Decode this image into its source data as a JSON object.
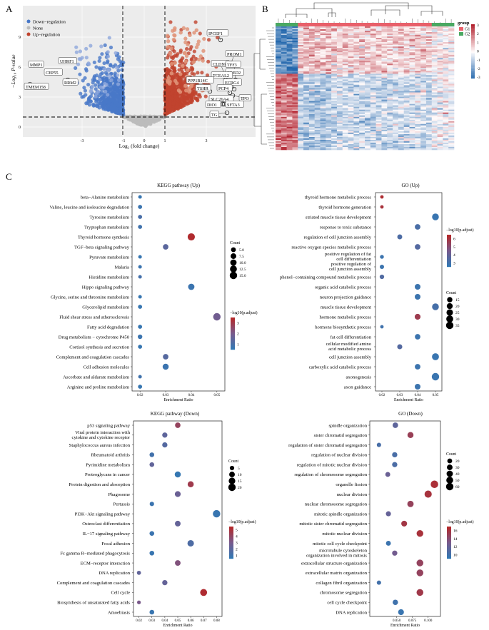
{
  "panel_labels": {
    "a": "A",
    "b": "B",
    "c": "C"
  },
  "volcano": {
    "xlabel": "Log₂ (fold change)",
    "ylabel": "−Log₁₀ P-value",
    "legend": {
      "down": "Down−regulation",
      "none": "None",
      "up": "Up−regulation"
    },
    "colors": {
      "down": "#4878c8",
      "none": "#bcbcbc",
      "up": "#c0432e",
      "highlight_up": "#e0957a",
      "highlight_down": "#8fa8dc"
    },
    "xticks": [
      "-3",
      "-1",
      "0",
      "1",
      "3"
    ],
    "yticks": [
      "0",
      "3",
      "6",
      "9"
    ],
    "genes_down": [
      "MMP1",
      "UHRF1",
      "CEP55",
      "RRM2",
      "TMEM158"
    ],
    "genes_up": [
      "IPCEF1",
      "PROM1",
      "CLDN8",
      "TFF3",
      "ZBED2",
      "TCEAL2",
      "ECRG4",
      "PPP1R14C",
      "TSHR",
      "PCP4",
      "TPO",
      "SLC26A4",
      "DIO1",
      "SFTA3",
      "TG"
    ]
  },
  "heatmap": {
    "legend_title": "group",
    "groups": [
      {
        "name": "G1",
        "color": "#e8606a"
      },
      {
        "name": "G2",
        "color": "#4aa862"
      }
    ],
    "scale": [
      "3",
      "2",
      "1",
      "0",
      "-1",
      "-2",
      "-3"
    ]
  },
  "chart_data": [
    {
      "type": "scatter",
      "title": "KEGG pathway (Up)",
      "xlabel": "Enrichment Ratio",
      "xlim": [
        0.018,
        0.052
      ],
      "xticks": [
        "0.02",
        "0.03",
        "0.04",
        "0.05"
      ],
      "size_legend": {
        "title": "Count",
        "labels": [
          "5.0",
          "7.5",
          "10.0",
          "12.5",
          "15.0"
        ],
        "values": [
          5,
          7.5,
          10,
          12.5,
          15
        ]
      },
      "color_legend": {
        "title": "−log10(p.adjust)",
        "labels": [
          "3",
          "2",
          "1"
        ],
        "range": [
          0.3,
          3.4
        ]
      },
      "points": [
        {
          "term": "beta−Alanine metabolism",
          "x": 0.02,
          "count": 2,
          "p": 0.4
        },
        {
          "term": "Valine, leucine and isoleucine degradation",
          "x": 0.02,
          "count": 3,
          "p": 0.5
        },
        {
          "term": "Tyrosine metabolism",
          "x": 0.02,
          "count": 3,
          "p": 0.8
        },
        {
          "term": "Tryptophan metabolism",
          "x": 0.02,
          "count": 3,
          "p": 0.6
        },
        {
          "term": "Thyroid hormone synthesis",
          "x": 0.04,
          "count": 14,
          "p": 3.3
        },
        {
          "term": "TGF−beta signaling pathway",
          "x": 0.03,
          "count": 7,
          "p": 1.2
        },
        {
          "term": "Pyruvate metabolism",
          "x": 0.02,
          "count": 2,
          "p": 0.4
        },
        {
          "term": "Malaria",
          "x": 0.02,
          "count": 2,
          "p": 0.5
        },
        {
          "term": "Histidine metabolism",
          "x": 0.02,
          "count": 2,
          "p": 0.7
        },
        {
          "term": "Hippo signaling pathway",
          "x": 0.04,
          "count": 10,
          "p": 0.5
        },
        {
          "term": "Glycine, serine and threonine metabolism",
          "x": 0.02,
          "count": 2,
          "p": 0.4
        },
        {
          "term": "Glycerolipid metabolism",
          "x": 0.02,
          "count": 3,
          "p": 0.4
        },
        {
          "term": "Fluid shear stress and atherosclerosis",
          "x": 0.05,
          "count": 15,
          "p": 1.7
        },
        {
          "term": "Fatty acid degradation",
          "x": 0.02,
          "count": 3,
          "p": 0.4
        },
        {
          "term": "Drug metabolism − cytochrome P450",
          "x": 0.02,
          "count": 4,
          "p": 0.5
        },
        {
          "term": "Cortisol synthesis and secretion",
          "x": 0.02,
          "count": 3,
          "p": 0.4
        },
        {
          "term": "Complement and coagulation cascades",
          "x": 0.03,
          "count": 7,
          "p": 1.1
        },
        {
          "term": "Cell adhesion molecules",
          "x": 0.03,
          "count": 9,
          "p": 0.5
        },
        {
          "term": "Ascorbate and aldarate metabolism",
          "x": 0.02,
          "count": 2,
          "p": 0.6
        },
        {
          "term": "Arginine and proline metabolism",
          "x": 0.02,
          "count": 3,
          "p": 0.4
        }
      ]
    },
    {
      "type": "scatter",
      "title": "GO (Up)",
      "xlabel": "Enrichment Ratio",
      "xlim": [
        0.018,
        0.052
      ],
      "xticks": [
        "0.02",
        "0.03",
        "0.04",
        "0.05"
      ],
      "size_legend": {
        "title": "Count",
        "labels": [
          "15",
          "20",
          "25",
          "30",
          "35"
        ],
        "values": [
          15,
          20,
          25,
          30,
          35
        ]
      },
      "color_legend": {
        "title": "−log10(p.adjust)",
        "labels": [
          "6",
          "5",
          "4",
          "3"
        ],
        "range": [
          2.3,
          6.4
        ]
      },
      "points": [
        {
          "term": "thyroid hormone metabolic process",
          "x": 0.02,
          "count": 4,
          "p": 6.2
        },
        {
          "term": "thyroid hormone generation",
          "x": 0.02,
          "count": 4,
          "p": 6.0
        },
        {
          "term": "striated muscle tissue development",
          "x": 0.05,
          "count": 28,
          "p": 2.5
        },
        {
          "term": "response to toxic substance",
          "x": 0.04,
          "count": 17,
          "p": 3.0
        },
        {
          "term": "regulation of cell junction assembly",
          "x": 0.03,
          "count": 12,
          "p": 3.1
        },
        {
          "term": "reactive oxygen species metabolic process",
          "x": 0.04,
          "count": 17,
          "p": 3.3
        },
        {
          "term": "positive regulation of fat cell differentiation",
          "x": 0.02,
          "count": 6,
          "p": 2.6
        },
        {
          "term": "positive regulation of cell junction assembly",
          "x": 0.02,
          "count": 8,
          "p": 2.6
        },
        {
          "term": "phenol−containing compound metabolic process",
          "x": 0.02,
          "count": 9,
          "p": 3.2
        },
        {
          "term": "organic acid catabolic process",
          "x": 0.04,
          "count": 18,
          "p": 2.6
        },
        {
          "term": "neuron projection guidance",
          "x": 0.04,
          "count": 18,
          "p": 2.6
        },
        {
          "term": "muscle tissue development",
          "x": 0.05,
          "count": 28,
          "p": 2.9
        },
        {
          "term": "hormone metabolic process",
          "x": 0.04,
          "count": 19,
          "p": 5.6
        },
        {
          "term": "hormone biosynthetic process",
          "x": 0.02,
          "count": 4,
          "p": 2.7
        },
        {
          "term": "fat cell differentiation",
          "x": 0.04,
          "count": 16,
          "p": 2.6
        },
        {
          "term": "cellular modified amino acid metabolic process",
          "x": 0.03,
          "count": 13,
          "p": 3.3
        },
        {
          "term": "cell junction assembly",
          "x": 0.05,
          "count": 30,
          "p": 2.5
        },
        {
          "term": "carboxylic acid catabolic process",
          "x": 0.04,
          "count": 17,
          "p": 2.6
        },
        {
          "term": "axonogenesis",
          "x": 0.05,
          "count": 35,
          "p": 2.5
        },
        {
          "term": "axon guidance",
          "x": 0.04,
          "count": 18,
          "p": 2.6
        }
      ]
    },
    {
      "type": "scatter",
      "title": "KEGG pathway (Down)",
      "xlabel": "Enrichment Ratio",
      "xlim": [
        0.018,
        0.082
      ],
      "xticks": [
        "0.02",
        "0.03",
        "0.04",
        "0.05",
        "0.06",
        "0.07",
        "0.08"
      ],
      "size_legend": {
        "title": "Count",
        "labels": [
          "5",
          "10",
          "15",
          "20"
        ],
        "values": [
          5,
          10,
          15,
          20
        ]
      },
      "color_legend": {
        "title": "−log10(p.adjust)",
        "labels": [
          "5",
          "4",
          "3",
          "2",
          "1"
        ],
        "range": [
          0.9,
          5.4
        ]
      },
      "points": [
        {
          "term": "p53 signaling pathway",
          "x": 0.05,
          "count": 9,
          "p": 4.2
        },
        {
          "term": "Viral protein interaction with cytokine and cytokine receptor",
          "x": 0.04,
          "count": 8,
          "p": 2.3
        },
        {
          "term": "Staphylococcus aureus infection",
          "x": 0.04,
          "count": 8,
          "p": 2.0
        },
        {
          "term": "Rheumatoid arthritis",
          "x": 0.03,
          "count": 6,
          "p": 1.4
        },
        {
          "term": "Pyrimidine metabolism",
          "x": 0.03,
          "count": 6,
          "p": 2.4
        },
        {
          "term": "Proteoglycans in cancer",
          "x": 0.05,
          "count": 12,
          "p": 1.0
        },
        {
          "term": "Protein digestion and absorption",
          "x": 0.06,
          "count": 12,
          "p": 4.6
        },
        {
          "term": "Phagosome",
          "x": 0.05,
          "count": 11,
          "p": 2.7
        },
        {
          "term": "Pertussis",
          "x": 0.03,
          "count": 5,
          "p": 1.2
        },
        {
          "term": "PI3K−Akt signaling pathway",
          "x": 0.08,
          "count": 20,
          "p": 1.1
        },
        {
          "term": "Osteoclast differentiation",
          "x": 0.05,
          "count": 10,
          "p": 2.5
        },
        {
          "term": "IL−17 signaling pathway",
          "x": 0.03,
          "count": 6,
          "p": 1.2
        },
        {
          "term": "Focal adhesion",
          "x": 0.06,
          "count": 14,
          "p": 1.8
        },
        {
          "term": "Fc gamma R−mediated phagocytosis",
          "x": 0.03,
          "count": 6,
          "p": 1.1
        },
        {
          "term": "ECM−receptor interaction",
          "x": 0.05,
          "count": 10,
          "p": 3.5
        },
        {
          "term": "DNA replication",
          "x": 0.02,
          "count": 4,
          "p": 2.4
        },
        {
          "term": "Complement and coagulation cascades",
          "x": 0.04,
          "count": 8,
          "p": 2.5
        },
        {
          "term": "Cell cycle",
          "x": 0.07,
          "count": 17,
          "p": 5.2
        },
        {
          "term": "Biosynthesis of unsaturated fatty acids",
          "x": 0.02,
          "count": 3,
          "p": 3.2
        },
        {
          "term": "Amoebiasis",
          "x": 0.03,
          "count": 6,
          "p": 1.1
        }
      ]
    },
    {
      "type": "scatter",
      "title": "GO (Down)",
      "xlabel": "Enrichment Ratio",
      "xlim": [
        0.012,
        0.115
      ],
      "xticks": [
        "0.050",
        "0.075",
        "0.100"
      ],
      "size_legend": {
        "title": "Count",
        "labels": [
          "20",
          "30",
          "40",
          "50",
          "60"
        ],
        "values": [
          20,
          30,
          40,
          50,
          60
        ]
      },
      "color_legend": {
        "title": "−log10(p.adjust)",
        "labels": [
          "16",
          "14",
          "12",
          "10"
        ],
        "range": [
          8.2,
          16.4
        ]
      },
      "points": [
        {
          "term": "spindle organization",
          "x": 0.048,
          "count": 28,
          "p": 10.8
        },
        {
          "term": "sister chromatid segregation",
          "x": 0.072,
          "count": 36,
          "p": 14.5
        },
        {
          "term": "regulation of sister chromatid segregation",
          "x": 0.022,
          "count": 14,
          "p": 9.5
        },
        {
          "term": "regulation of nuclear division",
          "x": 0.047,
          "count": 24,
          "p": 9.6
        },
        {
          "term": "regulation of mitotic nuclear division",
          "x": 0.047,
          "count": 24,
          "p": 9.7
        },
        {
          "term": "regulation of chromosome segregation",
          "x": 0.036,
          "count": 20,
          "p": 11.5
        },
        {
          "term": "organelle fission",
          "x": 0.11,
          "count": 62,
          "p": 15.8
        },
        {
          "term": "nuclear division",
          "x": 0.1,
          "count": 56,
          "p": 15.5
        },
        {
          "term": "nuclear chromosome segregation",
          "x": 0.072,
          "count": 40,
          "p": 14.3
        },
        {
          "term": "mitotic spindle organization",
          "x": 0.037,
          "count": 22,
          "p": 11.2
        },
        {
          "term": "mitotic sister chromatid segregation",
          "x": 0.062,
          "count": 32,
          "p": 15.2
        },
        {
          "term": "mitotic nuclear division",
          "x": 0.087,
          "count": 46,
          "p": 15.6
        },
        {
          "term": "mitotic cell cycle checkpoint",
          "x": 0.037,
          "count": 20,
          "p": 8.8
        },
        {
          "term": "microtubule cytoskeleton organization involved in mitosis",
          "x": 0.047,
          "count": 24,
          "p": 12.0
        },
        {
          "term": "extracellular structure organization",
          "x": 0.087,
          "count": 48,
          "p": 14.2
        },
        {
          "term": "extracellular matrix organization",
          "x": 0.087,
          "count": 48,
          "p": 14.2
        },
        {
          "term": "collagen fibril organization",
          "x": 0.022,
          "count": 14,
          "p": 9.2
        },
        {
          "term": "chromosome segregation",
          "x": 0.087,
          "count": 48,
          "p": 15.0
        },
        {
          "term": "cell cycle checkpoint",
          "x": 0.048,
          "count": 26,
          "p": 9.0
        },
        {
          "term": "DNA replication",
          "x": 0.057,
          "count": 32,
          "p": 8.6
        }
      ]
    }
  ]
}
